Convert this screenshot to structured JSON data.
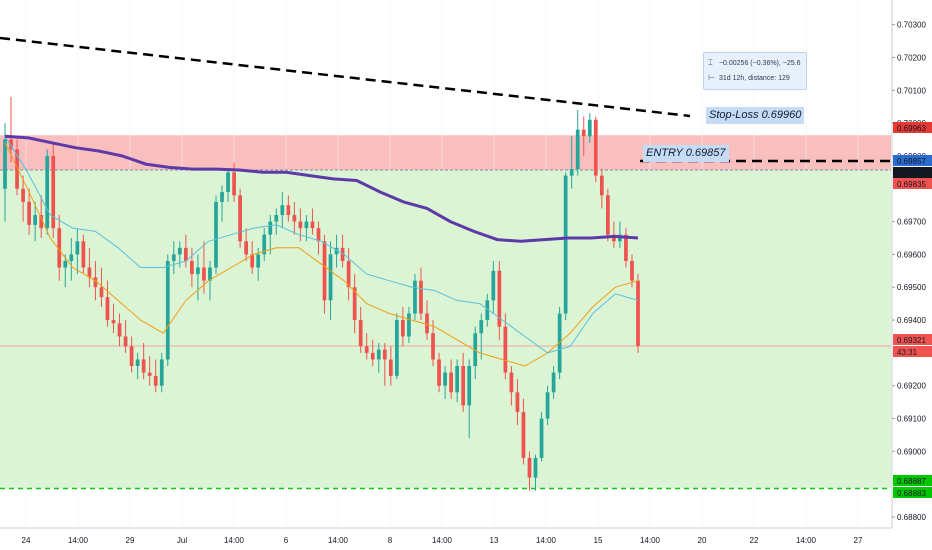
{
  "chart_data": {
    "type": "candlestick",
    "instrument_scale": "price",
    "ylim": [
      0.6873,
      0.70375
    ],
    "y_ticks": [
      "0.70300",
      "0.70200",
      "0.70100",
      "0.70000",
      "0.69900",
      "0.69700",
      "0.69600",
      "0.69500",
      "0.69400",
      "0.69200",
      "0.69100",
      "0.69000",
      "0.68800"
    ],
    "x_ticks": [
      "24",
      "14:00",
      "29",
      "Jul",
      "14:00",
      "6",
      "14:00",
      "8",
      "14:00",
      "13",
      "14:00",
      "15",
      "14:00",
      "20",
      "22",
      "14:00",
      "27"
    ],
    "price_labels": [
      {
        "value": 0.69963,
        "text": "0.69963",
        "color": "#e53935"
      },
      {
        "value": 0.69857,
        "text": "0.69857",
        "color": "#2b6cd1"
      },
      {
        "value": 0.69856,
        "text": "0.69856",
        "color": "#131722"
      },
      {
        "value": 0.69835,
        "text": "0.69835",
        "color": "#f05350"
      },
      {
        "value": 0.69321,
        "text": "0.69321",
        "color": "#f05350"
      },
      {
        "value": 0.68887,
        "text": "0.68887",
        "color": "#00c800"
      },
      {
        "value": 0.68883,
        "text": "0.68883",
        "color": "#00c800"
      }
    ],
    "countdown": "43:31",
    "annotations": {
      "stop_loss": {
        "text": "Stop-Loss 0.69960",
        "value": 0.6996
      },
      "entry": {
        "text": "ENTRY 0.69857",
        "value": 0.69857
      },
      "take_profit_level": 0.68887,
      "measure": {
        "line1": "−0.00256 (−0.36%), −25.6",
        "line2": "31d 12h, distance: 129"
      }
    },
    "zones": [
      {
        "name": "risk",
        "from": 0.69857,
        "to": 0.69963,
        "color": "#f8b8b8"
      },
      {
        "name": "reward",
        "from": 0.68887,
        "to": 0.69857,
        "color": "#dbf5d4"
      }
    ],
    "candles": [
      [
        0.698,
        0.7,
        0.697,
        0.6995
      ],
      [
        0.6995,
        0.7008,
        0.6988,
        0.6992
      ],
      [
        0.6992,
        0.6995,
        0.6978,
        0.698
      ],
      [
        0.698,
        0.6984,
        0.697,
        0.6976
      ],
      [
        0.6976,
        0.698,
        0.6966,
        0.6969
      ],
      [
        0.6969,
        0.6976,
        0.6964,
        0.6972
      ],
      [
        0.6972,
        0.6978,
        0.6965,
        0.6968
      ],
      [
        0.6968,
        0.6992,
        0.6966,
        0.699
      ],
      [
        0.699,
        0.6994,
        0.6965,
        0.6968
      ],
      [
        0.6968,
        0.6972,
        0.6952,
        0.6956
      ],
      [
        0.6956,
        0.696,
        0.695,
        0.6958
      ],
      [
        0.6958,
        0.6965,
        0.6952,
        0.696
      ],
      [
        0.696,
        0.6968,
        0.6954,
        0.6964
      ],
      [
        0.6964,
        0.6966,
        0.6954,
        0.6956
      ],
      [
        0.6956,
        0.6962,
        0.695,
        0.6953
      ],
      [
        0.6953,
        0.6958,
        0.6946,
        0.695
      ],
      [
        0.695,
        0.6956,
        0.6944,
        0.6947
      ],
      [
        0.6947,
        0.6952,
        0.6938,
        0.694
      ],
      [
        0.694,
        0.6945,
        0.6936,
        0.6939
      ],
      [
        0.6939,
        0.6942,
        0.6932,
        0.6935
      ],
      [
        0.6935,
        0.694,
        0.693,
        0.6932
      ],
      [
        0.6932,
        0.6935,
        0.6924,
        0.6926
      ],
      [
        0.6926,
        0.693,
        0.6922,
        0.6928
      ],
      [
        0.6928,
        0.6933,
        0.6922,
        0.6924
      ],
      [
        0.6924,
        0.6929,
        0.692,
        0.6923
      ],
      [
        0.6923,
        0.6928,
        0.6918,
        0.692
      ],
      [
        0.692,
        0.693,
        0.6918,
        0.6928
      ],
      [
        0.6928,
        0.696,
        0.6926,
        0.6958
      ],
      [
        0.6958,
        0.6964,
        0.6954,
        0.696
      ],
      [
        0.696,
        0.6964,
        0.6956,
        0.6962
      ],
      [
        0.6962,
        0.6966,
        0.6956,
        0.6958
      ],
      [
        0.6958,
        0.6962,
        0.695,
        0.6954
      ],
      [
        0.6954,
        0.696,
        0.6946,
        0.6956
      ],
      [
        0.6956,
        0.6964,
        0.6948,
        0.6952
      ],
      [
        0.6952,
        0.6958,
        0.6946,
        0.6956
      ],
      [
        0.6956,
        0.6978,
        0.6954,
        0.6976
      ],
      [
        0.6976,
        0.6981,
        0.697,
        0.6979
      ],
      [
        0.6979,
        0.6986,
        0.6976,
        0.6985
      ],
      [
        0.6985,
        0.6988,
        0.6976,
        0.6978
      ],
      [
        0.6978,
        0.698,
        0.6962,
        0.6964
      ],
      [
        0.6964,
        0.6968,
        0.6958,
        0.696
      ],
      [
        0.696,
        0.6964,
        0.6954,
        0.6956
      ],
      [
        0.6956,
        0.6962,
        0.6952,
        0.696
      ],
      [
        0.696,
        0.6968,
        0.6958,
        0.6966
      ],
      [
        0.6966,
        0.6972,
        0.696,
        0.697
      ],
      [
        0.697,
        0.6974,
        0.6966,
        0.6972
      ],
      [
        0.6972,
        0.6979,
        0.6968,
        0.6975
      ],
      [
        0.6975,
        0.6978,
        0.697,
        0.6972
      ],
      [
        0.6972,
        0.6976,
        0.6966,
        0.697
      ],
      [
        0.697,
        0.6974,
        0.6964,
        0.6968
      ],
      [
        0.6968,
        0.6972,
        0.6964,
        0.697
      ],
      [
        0.697,
        0.6974,
        0.6966,
        0.6968
      ],
      [
        0.6968,
        0.697,
        0.696,
        0.6964
      ],
      [
        0.6964,
        0.6966,
        0.6942,
        0.6946
      ],
      [
        0.6946,
        0.6964,
        0.694,
        0.696
      ],
      [
        0.696,
        0.6966,
        0.6956,
        0.6962
      ],
      [
        0.6962,
        0.6966,
        0.6956,
        0.6958
      ],
      [
        0.6958,
        0.6962,
        0.6946,
        0.695
      ],
      [
        0.695,
        0.6954,
        0.6936,
        0.694
      ],
      [
        0.694,
        0.6944,
        0.693,
        0.6932
      ],
      [
        0.6932,
        0.6936,
        0.6928,
        0.693
      ],
      [
        0.693,
        0.6934,
        0.6926,
        0.6928
      ],
      [
        0.6928,
        0.6933,
        0.6924,
        0.6931
      ],
      [
        0.6931,
        0.6933,
        0.692,
        0.6928
      ],
      [
        0.6928,
        0.6932,
        0.692,
        0.6923
      ],
      [
        0.6923,
        0.6942,
        0.6922,
        0.694
      ],
      [
        0.694,
        0.6944,
        0.6932,
        0.6935
      ],
      [
        0.6935,
        0.6944,
        0.6933,
        0.6942
      ],
      [
        0.6942,
        0.6954,
        0.694,
        0.6952
      ],
      [
        0.6952,
        0.6956,
        0.694,
        0.6942
      ],
      [
        0.6942,
        0.6946,
        0.6934,
        0.6936
      ],
      [
        0.6936,
        0.694,
        0.6926,
        0.6928
      ],
      [
        0.6928,
        0.693,
        0.6918,
        0.692
      ],
      [
        0.692,
        0.6926,
        0.6916,
        0.6924
      ],
      [
        0.6924,
        0.6928,
        0.6916,
        0.6918
      ],
      [
        0.6918,
        0.6928,
        0.6915,
        0.6926
      ],
      [
        0.6926,
        0.693,
        0.6912,
        0.6914
      ],
      [
        0.6914,
        0.6928,
        0.6904,
        0.6926
      ],
      [
        0.6926,
        0.6938,
        0.6922,
        0.6936
      ],
      [
        0.6936,
        0.6942,
        0.6928,
        0.694
      ],
      [
        0.694,
        0.6948,
        0.6938,
        0.6946
      ],
      [
        0.6946,
        0.6958,
        0.6942,
        0.6955
      ],
      [
        0.6955,
        0.6958,
        0.6934,
        0.6938
      ],
      [
        0.6938,
        0.6942,
        0.6922,
        0.6924
      ],
      [
        0.6924,
        0.6926,
        0.6914,
        0.6918
      ],
      [
        0.6918,
        0.6922,
        0.6908,
        0.6912
      ],
      [
        0.6912,
        0.6916,
        0.6896,
        0.6898
      ],
      [
        0.6898,
        0.69,
        0.6888,
        0.6892
      ],
      [
        0.6892,
        0.6899,
        0.6888,
        0.6898
      ],
      [
        0.6898,
        0.6912,
        0.6897,
        0.691
      ],
      [
        0.691,
        0.692,
        0.6908,
        0.6918
      ],
      [
        0.6918,
        0.6926,
        0.6916,
        0.6924
      ],
      [
        0.6924,
        0.6944,
        0.6922,
        0.6942
      ],
      [
        0.6942,
        0.6985,
        0.694,
        0.6984
      ],
      [
        0.6984,
        0.6996,
        0.698,
        0.6986
      ],
      [
        0.6986,
        0.7004,
        0.6984,
        0.6998
      ],
      [
        0.6998,
        0.7002,
        0.699,
        0.6996
      ],
      [
        0.6996,
        0.7003,
        0.6994,
        0.7001
      ],
      [
        0.7001,
        0.7002,
        0.6982,
        0.6984
      ],
      [
        0.6984,
        0.6986,
        0.6974,
        0.6978
      ],
      [
        0.6978,
        0.698,
        0.6964,
        0.6966
      ],
      [
        0.6966,
        0.697,
        0.6962,
        0.6964
      ],
      [
        0.6964,
        0.697,
        0.6962,
        0.6966
      ],
      [
        0.6966,
        0.6968,
        0.6956,
        0.6958
      ],
      [
        0.6958,
        0.696,
        0.695,
        0.6952
      ],
      [
        0.6952,
        0.6954,
        0.693,
        0.69321
      ]
    ],
    "ma_long": [
      0.6996,
      0.69955,
      0.6994,
      0.69925,
      0.69915,
      0.699,
      0.69875,
      0.69865,
      0.6986,
      0.6986,
      0.69857,
      0.6985,
      0.6985,
      0.6984,
      0.6983,
      0.69825,
      0.6979,
      0.6976,
      0.6974,
      0.697,
      0.6967,
      0.69645,
      0.6964,
      0.69645,
      0.6965,
      0.6965,
      0.69655,
      0.6965
    ],
    "ma_medium": [
      0.6996,
      0.6985,
      0.6972,
      0.6968,
      0.6967,
      0.6962,
      0.6956,
      0.6956,
      0.6958,
      0.6964,
      0.6966,
      0.6968,
      0.6969,
      0.6966,
      0.6964,
      0.696,
      0.6954,
      0.6952,
      0.695,
      0.6949,
      0.6946,
      0.6945,
      0.694,
      0.6935,
      0.693,
      0.6932,
      0.6942,
      0.6948,
      0.6946
    ],
    "ma_short": [
      0.6994,
      0.698,
      0.6965,
      0.6956,
      0.6952,
      0.6946,
      0.694,
      0.6936,
      0.6946,
      0.6952,
      0.6956,
      0.696,
      0.6962,
      0.6962,
      0.6957,
      0.6952,
      0.6945,
      0.6942,
      0.694,
      0.6938,
      0.6934,
      0.693,
      0.6928,
      0.6926,
      0.693,
      0.6936,
      0.6944,
      0.695,
      0.6952
    ]
  }
}
